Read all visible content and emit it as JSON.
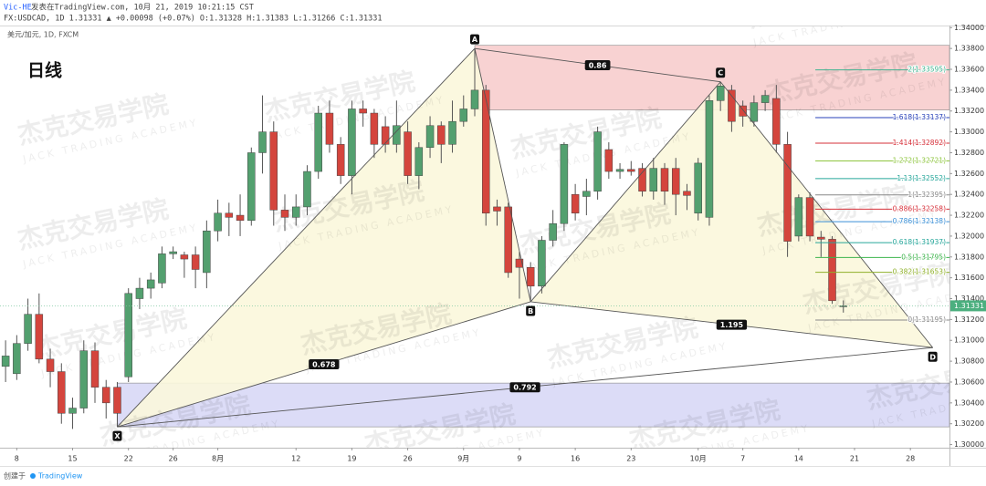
{
  "chart_data": {
    "type": "candlestick",
    "title": "日线",
    "publisher": "Vic-HE",
    "published": "发表在TradingView.com, 10月 21, 2019 10:21:15 CST",
    "quote_line": "FX:USDCAD, 1D 1.31331 ▲ +0.00098 (+0.07%) O:1.31328 H:1.31383 L:1.31266 C:1.31331",
    "symbol": "美元/加元, 1D, FXCM",
    "watermark": {
      "cn": "杰克交易学院",
      "en": "JACK TRADING ACADEMY"
    },
    "footer": {
      "prefix": "创建于",
      "brand": "TradingView"
    },
    "up_color": "#53a06f",
    "down_color": "#d4453d",
    "categories": [
      null,
      "8",
      null,
      null,
      null,
      null,
      "15",
      null,
      null,
      null,
      null,
      "22",
      null,
      null,
      null,
      "26",
      null,
      null,
      null,
      "8月",
      null,
      null,
      null,
      null,
      null,
      null,
      "12",
      null,
      null,
      null,
      null,
      "19",
      null,
      null,
      null,
      null,
      "26",
      null,
      null,
      null,
      null,
      "9月",
      null,
      null,
      null,
      null,
      "9",
      null,
      null,
      null,
      null,
      "16",
      null,
      null,
      null,
      null,
      "23",
      null,
      null,
      null,
      null,
      null,
      "10月",
      null,
      null,
      null,
      "7",
      null,
      null,
      null,
      null,
      "14",
      null,
      null,
      null,
      null,
      "21",
      null,
      null,
      null,
      null,
      "28",
      null,
      null,
      null
    ],
    "open": [
      1.3075,
      1.3068,
      1.3097,
      1.3125,
      1.3082,
      1.307,
      1.303,
      1.3035,
      1.309,
      1.3055,
      1.3055,
      1.3065,
      1.314,
      1.315,
      1.3155,
      1.3183,
      1.3182,
      1.3182,
      1.3165,
      1.3205,
      1.3222,
      1.322,
      1.3215,
      1.328,
      1.33,
      1.3225,
      1.3218,
      1.3228,
      1.3262,
      1.3318,
      1.3288,
      1.3258,
      1.3322,
      1.3318,
      1.3305,
      1.3288,
      1.33,
      1.3258,
      1.3285,
      1.3306,
      1.3288,
      1.331,
      1.3322,
      1.334,
      1.3228,
      1.3228,
      1.3178,
      1.317,
      1.3152,
      1.3196,
      1.3212,
      1.324,
      1.3238,
      1.3243,
      1.3283,
      1.3262,
      1.3264,
      1.3265,
      1.3243,
      1.3265,
      1.3265,
      1.3243,
      1.3222,
      1.3218,
      1.333,
      1.334,
      1.3325,
      1.331,
      1.3328,
      1.3332,
      1.3288,
      1.32,
      1.3237,
      1.3199,
      1.3197,
      1.31328,
      null,
      null,
      null,
      null,
      null,
      null,
      null,
      null,
      null
    ],
    "high": [
      1.31,
      1.3105,
      1.314,
      1.3145,
      1.3092,
      1.3078,
      1.3045,
      1.31,
      1.3098,
      1.3062,
      1.306,
      1.315,
      1.316,
      1.3165,
      1.319,
      1.319,
      1.3185,
      1.319,
      1.3215,
      1.3235,
      1.3232,
      1.324,
      1.3285,
      1.3335,
      1.331,
      1.324,
      1.324,
      1.3268,
      1.3325,
      1.333,
      1.3295,
      1.333,
      1.333,
      1.3322,
      1.3315,
      1.333,
      1.331,
      1.329,
      1.3315,
      1.331,
      1.333,
      1.3335,
      1.338,
      1.3345,
      1.3235,
      1.3232,
      1.3185,
      1.3175,
      1.32,
      1.3225,
      1.329,
      1.325,
      1.3255,
      1.3305,
      1.329,
      1.327,
      1.3272,
      1.327,
      1.3275,
      1.327,
      1.3275,
      1.325,
      1.3275,
      1.3335,
      1.3348,
      1.3345,
      1.333,
      1.3335,
      1.334,
      1.3345,
      1.33,
      1.324,
      1.3242,
      1.3205,
      1.32,
      1.31383,
      null,
      null,
      null,
      null,
      null,
      null,
      null,
      null,
      null
    ],
    "low": [
      1.306,
      1.3062,
      1.309,
      1.3078,
      1.3055,
      1.302,
      1.3015,
      1.303,
      1.304,
      1.3025,
      1.3017,
      1.306,
      1.313,
      1.314,
      1.315,
      1.3178,
      1.316,
      1.315,
      1.315,
      1.3195,
      1.32,
      1.32,
      1.321,
      1.326,
      1.321,
      1.3205,
      1.321,
      1.322,
      1.3255,
      1.328,
      1.325,
      1.324,
      1.3305,
      1.3275,
      1.328,
      1.328,
      1.325,
      1.3245,
      1.3275,
      1.327,
      1.328,
      1.3305,
      1.3315,
      1.321,
      1.321,
      1.316,
      1.314,
      1.3137,
      1.3145,
      1.319,
      1.3205,
      1.3215,
      1.322,
      1.3235,
      1.3255,
      1.3255,
      1.3258,
      1.3238,
      1.3235,
      1.323,
      1.322,
      1.3225,
      1.3215,
      1.321,
      1.332,
      1.33,
      1.3305,
      1.3305,
      1.332,
      1.328,
      1.318,
      1.3195,
      1.3195,
      1.318,
      1.3135,
      1.31266,
      null,
      null,
      null,
      null,
      null,
      null,
      null,
      null,
      null
    ],
    "close": [
      1.3085,
      1.3097,
      1.3125,
      1.3082,
      1.307,
      1.303,
      1.3035,
      1.309,
      1.3055,
      1.304,
      1.303,
      1.3145,
      1.315,
      1.3158,
      1.3183,
      1.3185,
      1.3178,
      1.3168,
      1.3205,
      1.3222,
      1.3218,
      1.3215,
      1.328,
      1.33,
      1.3225,
      1.3218,
      1.3228,
      1.3262,
      1.3318,
      1.3288,
      1.3258,
      1.3322,
      1.3318,
      1.3288,
      1.3288,
      1.3306,
      1.3258,
      1.3285,
      1.3306,
      1.3288,
      1.331,
      1.3322,
      1.334,
      1.3222,
      1.3224,
      1.3165,
      1.317,
      1.3152,
      1.3196,
      1.3212,
      1.3288,
      1.3222,
      1.3243,
      1.33,
      1.3262,
      1.3264,
      1.3262,
      1.3243,
      1.3265,
      1.3243,
      1.324,
      1.3239,
      1.327,
      1.333,
      1.3344,
      1.331,
      1.3315,
      1.3328,
      1.3335,
      1.3288,
      1.3195,
      1.3237,
      1.32,
      1.3197,
      1.3138,
      1.31331,
      null,
      null,
      null,
      null,
      null,
      null,
      null,
      null,
      null
    ],
    "ylim": [
      1.2997,
      1.3402
    ],
    "yticks": [
      {
        "value": 1.34,
        "label": "1.34000"
      },
      {
        "value": 1.338,
        "label": "1.33800"
      },
      {
        "value": 1.336,
        "label": "1.33600"
      },
      {
        "value": 1.334,
        "label": "1.33400"
      },
      {
        "value": 1.332,
        "label": "1.33200"
      },
      {
        "value": 1.33,
        "label": "1.33000"
      },
      {
        "value": 1.328,
        "label": "1.32800"
      },
      {
        "value": 1.326,
        "label": "1.32600"
      },
      {
        "value": 1.324,
        "label": "1.32400"
      },
      {
        "value": 1.322,
        "label": "1.32200"
      },
      {
        "value": 1.32,
        "label": "1.32000"
      },
      {
        "value": 1.318,
        "label": "1.31800"
      },
      {
        "value": 1.316,
        "label": "1.31600"
      },
      {
        "value": 1.314,
        "label": "1.31400"
      },
      {
        "value": 1.312,
        "label": "1.31200"
      },
      {
        "value": 1.31,
        "label": "1.31000"
      },
      {
        "value": 1.308,
        "label": "1.30800"
      },
      {
        "value": 1.306,
        "label": "1.30600"
      },
      {
        "value": 1.304,
        "label": "1.30400"
      },
      {
        "value": 1.302,
        "label": "1.30200"
      },
      {
        "value": 1.3,
        "label": "1.30000"
      }
    ],
    "pattern": {
      "points": [
        {
          "label": "X",
          "bar": 10,
          "price": 1.3017
        },
        {
          "label": "A",
          "bar": 42,
          "price": 1.338
        },
        {
          "label": "B",
          "bar": 47,
          "price": 1.3137
        },
        {
          "label": "C",
          "bar": 64,
          "price": 1.3348
        },
        {
          "label": "D",
          "bar": 83,
          "price": 1.3093
        }
      ],
      "ratios": {
        "XB": 0.678,
        "AC": 0.86,
        "BD": 1.195,
        "XD": 0.792
      },
      "fill": "#fbf7dc",
      "line_color": "#555555"
    },
    "zones": [
      {
        "top": 1.3383,
        "bottom": 1.3321,
        "color": "#f8d2d2"
      },
      {
        "top": 1.3059,
        "bottom": 1.3017,
        "color": "#dcdcf7"
      }
    ],
    "fib_levels": [
      {
        "value": 1.33595,
        "label": "2(1.33595)",
        "color": "#3fb38f"
      },
      {
        "value": 1.33137,
        "label": "1.618(1.33137)",
        "color": "#2741b8"
      },
      {
        "value": 1.32892,
        "label": "1.414(1.32892)",
        "color": "#d6303a"
      },
      {
        "value": 1.32721,
        "label": "1.272(1.32721)",
        "color": "#8fc640"
      },
      {
        "value": 1.32552,
        "label": "1.13(1.32552)",
        "color": "#26a69a"
      },
      {
        "value": 1.32395,
        "label": "1(1.32395)",
        "color": "#888888"
      },
      {
        "value": 1.32258,
        "label": "0.886(1.32258)",
        "color": "#d6303a"
      },
      {
        "value": 1.32138,
        "label": "0.786(1.32138)",
        "color": "#3a8fd6"
      },
      {
        "value": 1.31937,
        "label": "0.618(1.31937)",
        "color": "#26a69a"
      },
      {
        "value": 1.31795,
        "label": "0.5(1.31795)",
        "color": "#3cb44b"
      },
      {
        "value": 1.31653,
        "label": "0.382(1.31653)",
        "color": "#8fb02a"
      },
      {
        "value": 1.31195,
        "label": "0(1.31195)",
        "color": "#888888"
      }
    ]
  }
}
